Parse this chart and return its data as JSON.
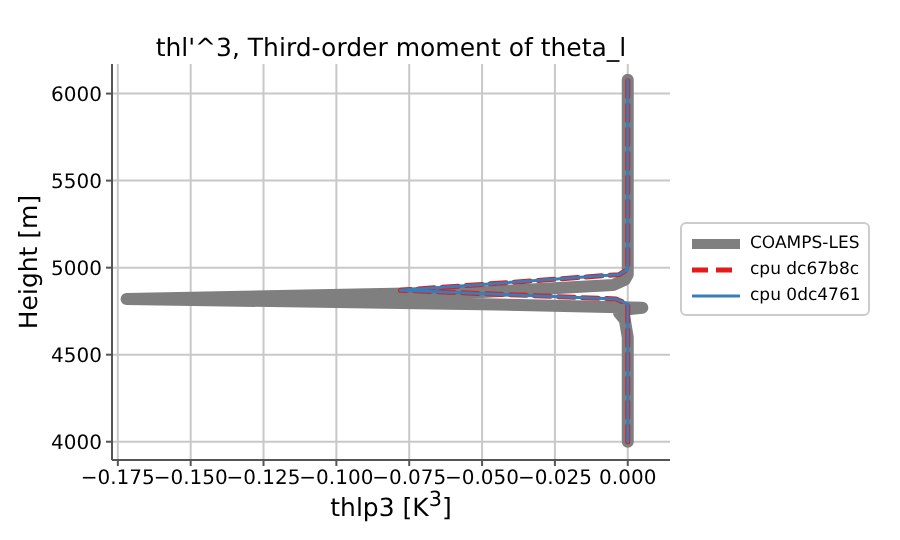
{
  "chart_data": {
    "type": "line",
    "title": "thl'^3, Third-order moment of theta_l",
    "xlabel": "thlp3 [K$^{3}$]",
    "ylabel": "Height [m]",
    "xlim": [
      -0.177,
      0.0145
    ],
    "ylim": [
      3895,
      6170
    ],
    "xticks": [
      {
        "value": -0.175,
        "label": "−0.175"
      },
      {
        "value": -0.15,
        "label": "−0.150"
      },
      {
        "value": -0.125,
        "label": "−0.125"
      },
      {
        "value": -0.1,
        "label": "−0.100"
      },
      {
        "value": -0.075,
        "label": "−0.075"
      },
      {
        "value": -0.05,
        "label": "−0.050"
      },
      {
        "value": -0.025,
        "label": "−0.025"
      },
      {
        "value": 0,
        "label": "0.000"
      }
    ],
    "yticks": [
      4000,
      4500,
      5000,
      5500,
      6000
    ],
    "grid": true,
    "legend": "right",
    "marker": "none",
    "series": [
      {
        "name": "COAMPS-LES",
        "color": "#7f7f7f",
        "line_style": "solid",
        "x": [
          0,
          0,
          -0.001,
          -0.003,
          -0.001,
          0.005,
          -0.05,
          -0.172,
          -0.05,
          -0.005,
          -0.001,
          0,
          0
        ],
        "values": [
          4000,
          4600,
          4700,
          4740,
          4760,
          4770,
          4790,
          4820,
          4860,
          4900,
          4930,
          4960,
          6080
        ]
      },
      {
        "name": "cpu dc67b8c",
        "color": "#e41a1c",
        "line_style": "dashed",
        "x": [
          0,
          0,
          0,
          -0.004,
          -0.078,
          -0.003,
          0,
          0
        ],
        "values": [
          4000,
          4700,
          4790,
          4820,
          4870,
          4960,
          4990,
          6080
        ]
      },
      {
        "name": "cpu 0dc4761",
        "color": "#377eb8",
        "line_style": "solid",
        "x": [
          0,
          0,
          0,
          -0.004,
          -0.078,
          -0.003,
          0,
          0
        ],
        "values": [
          4000,
          4700,
          4790,
          4820,
          4870,
          4960,
          4990,
          6080
        ]
      }
    ]
  }
}
